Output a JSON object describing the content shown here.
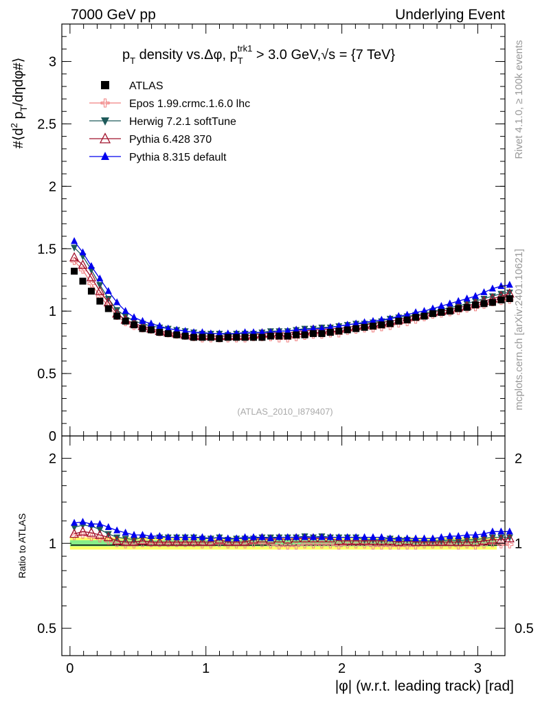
{
  "header": {
    "left": "7000 GeV pp",
    "right": "Underlying Event"
  },
  "title": {
    "text": "p_T density vs.Δφ, p_T^trk1 > 3.0 GeV,√s = {7 TeV}"
  },
  "side_labels": {
    "top": "Rivet 4.1.0, ≥ 100k events",
    "bottom": "mcplots.cern.ch [arXiv:2401.10621]"
  },
  "watermark": "(ATLAS_2010_I879407)",
  "chart_data": [
    {
      "type": "scatter",
      "panel": "main",
      "ylabel": "#⟨d² p_T/dηdφ#⟩",
      "xlabel": "|φ| (w.r.t. leading track) [rad]",
      "xlim": [
        -0.06,
        3.2
      ],
      "ylim": [
        0,
        3.3
      ],
      "yticks": [
        0,
        0.5,
        1,
        1.5,
        2,
        2.5,
        3
      ],
      "ytick_labels": [
        "0",
        "0.5",
        "1",
        "1.5",
        "2",
        "2.5",
        "3"
      ],
      "xticks": [
        0,
        1,
        2,
        3
      ],
      "xtick_labels": [
        "0",
        "1",
        "2",
        "3"
      ],
      "x_start": 0.0314,
      "x_step": 0.0628,
      "legend": [
        {
          "name": "ATLAS",
          "color": "#000000",
          "marker": "square"
        },
        {
          "name": "Epos 1.99.crmc.1.6.0 lhc",
          "color": "#f08080",
          "marker": "open-cross"
        },
        {
          "name": "Herwig 7.2.1 softTune",
          "color": "#1e5a5a",
          "marker": "triangle-down"
        },
        {
          "name": "Pythia 6.428 370",
          "color": "#a0102a",
          "marker": "open-triangle"
        },
        {
          "name": "Pythia 8.315 default",
          "color": "#0000ee",
          "marker": "triangle"
        }
      ],
      "series": [
        {
          "name": "ATLAS",
          "values": [
            1.32,
            1.24,
            1.16,
            1.08,
            1.02,
            0.96,
            0.92,
            0.89,
            0.86,
            0.85,
            0.83,
            0.82,
            0.81,
            0.8,
            0.79,
            0.79,
            0.79,
            0.78,
            0.79,
            0.79,
            0.79,
            0.79,
            0.79,
            0.8,
            0.8,
            0.8,
            0.81,
            0.81,
            0.82,
            0.82,
            0.83,
            0.84,
            0.85,
            0.86,
            0.87,
            0.88,
            0.89,
            0.9,
            0.92,
            0.93,
            0.95,
            0.96,
            0.98,
            0.99,
            1.0,
            1.02,
            1.03,
            1.05,
            1.06,
            1.07,
            1.09,
            1.1
          ]
        },
        {
          "name": "Epos 1.99.crmc.1.6.0 lhc",
          "values": [
            1.4,
            1.33,
            1.22,
            1.12,
            1.04,
            0.96,
            0.91,
            0.88,
            0.86,
            0.85,
            0.83,
            0.82,
            0.81,
            0.8,
            0.79,
            0.78,
            0.78,
            0.78,
            0.78,
            0.78,
            0.78,
            0.79,
            0.79,
            0.79,
            0.78,
            0.78,
            0.79,
            0.8,
            0.81,
            0.81,
            0.82,
            0.82,
            0.84,
            0.85,
            0.86,
            0.86,
            0.87,
            0.88,
            0.9,
            0.91,
            0.93,
            0.95,
            0.97,
            0.98,
            0.99,
            1.0,
            1.02,
            1.03,
            1.05,
            1.07,
            1.08,
            1.09
          ]
        },
        {
          "name": "Herwig 7.2.1 softTune",
          "values": [
            1.51,
            1.44,
            1.33,
            1.21,
            1.1,
            1.01,
            0.96,
            0.92,
            0.9,
            0.88,
            0.87,
            0.86,
            0.85,
            0.84,
            0.83,
            0.82,
            0.82,
            0.82,
            0.81,
            0.82,
            0.82,
            0.82,
            0.83,
            0.84,
            0.84,
            0.84,
            0.85,
            0.86,
            0.86,
            0.87,
            0.87,
            0.88,
            0.89,
            0.9,
            0.9,
            0.91,
            0.92,
            0.94,
            0.95,
            0.96,
            0.97,
            0.98,
            1.0,
            1.01,
            1.03,
            1.04,
            1.06,
            1.08,
            1.1,
            1.12,
            1.14,
            1.15
          ]
        },
        {
          "name": "Pythia 6.428 370",
          "values": [
            1.43,
            1.37,
            1.27,
            1.16,
            1.07,
            0.98,
            0.93,
            0.9,
            0.88,
            0.86,
            0.84,
            0.83,
            0.82,
            0.81,
            0.8,
            0.8,
            0.8,
            0.8,
            0.8,
            0.8,
            0.8,
            0.81,
            0.82,
            0.82,
            0.83,
            0.82,
            0.84,
            0.84,
            0.85,
            0.85,
            0.86,
            0.86,
            0.87,
            0.88,
            0.89,
            0.9,
            0.91,
            0.92,
            0.93,
            0.95,
            0.96,
            0.97,
            0.99,
            1.0,
            1.01,
            1.03,
            1.04,
            1.06,
            1.08,
            1.1,
            1.12,
            1.14
          ]
        },
        {
          "name": "Pythia 8.315 default",
          "values": [
            1.56,
            1.47,
            1.36,
            1.26,
            1.16,
            1.07,
            1.0,
            0.95,
            0.92,
            0.9,
            0.88,
            0.86,
            0.85,
            0.84,
            0.83,
            0.83,
            0.82,
            0.82,
            0.82,
            0.82,
            0.83,
            0.83,
            0.83,
            0.83,
            0.84,
            0.84,
            0.85,
            0.85,
            0.86,
            0.86,
            0.87,
            0.88,
            0.89,
            0.9,
            0.91,
            0.92,
            0.93,
            0.94,
            0.96,
            0.97,
            0.99,
            1.0,
            1.02,
            1.04,
            1.06,
            1.08,
            1.1,
            1.12,
            1.15,
            1.18,
            1.2,
            1.21
          ]
        }
      ]
    },
    {
      "type": "scatter",
      "panel": "ratio",
      "ylabel": "Ratio to ATLAS",
      "xlabel": "|φ| (w.r.t. leading track) [rad]",
      "xlim": [
        -0.06,
        3.2
      ],
      "ylim": [
        0.4,
        2.4
      ],
      "yscale": "log",
      "yticks": [
        0.5,
        1,
        2
      ],
      "ytick_labels": [
        "0.5",
        "1",
        "2"
      ],
      "bands": [
        {
          "name": "total uncertainty",
          "color": "#ffff66",
          "range": [
            0.95,
            1.05
          ]
        },
        {
          "name": "stat uncertainty",
          "color": "#88ee88",
          "range": [
            0.975,
            1.025
          ]
        }
      ],
      "series": [
        {
          "name": "Epos 1.99.crmc.1.6.0 lhc",
          "values": [
            1.06,
            1.07,
            1.05,
            1.04,
            1.02,
            1.0,
            0.99,
            0.99,
            1.0,
            1.0,
            1.0,
            1.0,
            1.0,
            1.0,
            1.0,
            0.99,
            0.99,
            1.0,
            0.99,
            0.99,
            0.99,
            1.0,
            1.0,
            0.99,
            0.98,
            0.98,
            0.98,
            0.99,
            0.99,
            0.99,
            0.99,
            0.98,
            0.99,
            0.99,
            0.99,
            0.98,
            0.98,
            0.98,
            0.98,
            0.98,
            0.98,
            0.99,
            0.99,
            0.99,
            0.99,
            0.98,
            0.99,
            0.98,
            0.99,
            1.0,
            0.99,
            0.99
          ]
        },
        {
          "name": "Herwig 7.2.1 softTune",
          "values": [
            1.14,
            1.16,
            1.15,
            1.12,
            1.08,
            1.05,
            1.04,
            1.03,
            1.05,
            1.04,
            1.05,
            1.05,
            1.05,
            1.05,
            1.05,
            1.04,
            1.04,
            1.05,
            1.03,
            1.04,
            1.04,
            1.04,
            1.05,
            1.05,
            1.05,
            1.05,
            1.05,
            1.06,
            1.05,
            1.06,
            1.05,
            1.05,
            1.05,
            1.05,
            1.03,
            1.03,
            1.03,
            1.04,
            1.03,
            1.03,
            1.02,
            1.02,
            1.02,
            1.02,
            1.03,
            1.02,
            1.03,
            1.03,
            1.04,
            1.05,
            1.05,
            1.05
          ]
        },
        {
          "name": "Pythia 6.428 370",
          "values": [
            1.08,
            1.1,
            1.09,
            1.07,
            1.05,
            1.02,
            1.01,
            1.01,
            1.02,
            1.01,
            1.01,
            1.01,
            1.01,
            1.01,
            1.01,
            1.01,
            1.01,
            1.03,
            1.01,
            1.01,
            1.01,
            1.03,
            1.04,
            1.03,
            1.04,
            1.03,
            1.04,
            1.04,
            1.04,
            1.04,
            1.04,
            1.02,
            1.02,
            1.02,
            1.02,
            1.02,
            1.02,
            1.02,
            1.01,
            1.02,
            1.01,
            1.01,
            1.01,
            1.01,
            1.01,
            1.01,
            1.01,
            1.01,
            1.02,
            1.03,
            1.03,
            1.04
          ]
        },
        {
          "name": "Pythia 8.315 default",
          "values": [
            1.18,
            1.19,
            1.17,
            1.17,
            1.14,
            1.11,
            1.09,
            1.07,
            1.07,
            1.06,
            1.06,
            1.05,
            1.05,
            1.05,
            1.05,
            1.05,
            1.04,
            1.05,
            1.04,
            1.04,
            1.05,
            1.05,
            1.05,
            1.04,
            1.05,
            1.05,
            1.05,
            1.05,
            1.05,
            1.05,
            1.05,
            1.05,
            1.05,
            1.05,
            1.05,
            1.05,
            1.05,
            1.04,
            1.04,
            1.04,
            1.04,
            1.04,
            1.04,
            1.05,
            1.06,
            1.06,
            1.07,
            1.07,
            1.08,
            1.1,
            1.1,
            1.1
          ]
        }
      ]
    }
  ]
}
